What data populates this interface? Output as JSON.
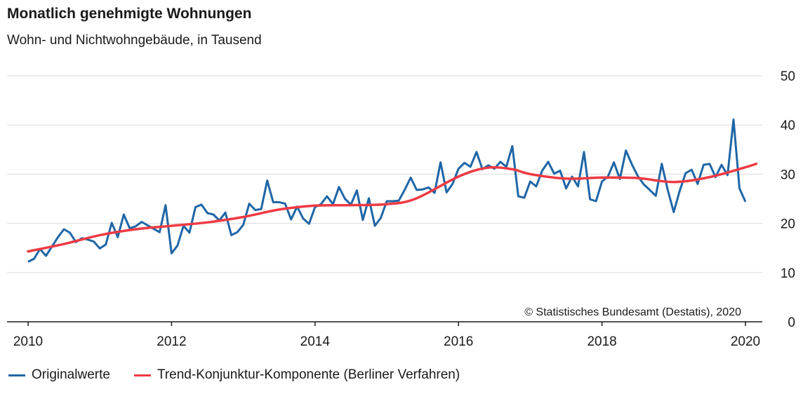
{
  "chart_data": {
    "type": "line",
    "title": "Monatlich genehmigte Wohnungen",
    "subtitle": "Wohn- und Nichtwohngebäude, in Tausend",
    "source": "© Statistisches Bundesamt (Destatis), 2020",
    "x_ticks": [
      "2010",
      "2012",
      "2014",
      "2016",
      "2018",
      "2020"
    ],
    "y_ticks": [
      "0",
      "10",
      "20",
      "30",
      "40",
      "50"
    ],
    "xlim": [
      2010,
      2020.25
    ],
    "ylim": [
      0,
      50
    ],
    "grid": true,
    "y_axis_side": "right",
    "legend_position": "bottom",
    "series": [
      {
        "name": "Originalwerte",
        "color": "#1f66a6",
        "start": "2010-01",
        "values": [
          12.2,
          12.8,
          14.8,
          13.4,
          15.3,
          17.2,
          18.8,
          18.1,
          16.2,
          17.0,
          16.7,
          16.3,
          14.9,
          15.7,
          20.1,
          17.2,
          21.8,
          19.0,
          19.4,
          20.3,
          19.6,
          18.9,
          18.2,
          23.7,
          13.9,
          15.5,
          19.5,
          18.1,
          23.3,
          23.8,
          22.1,
          21.8,
          20.6,
          22.2,
          17.6,
          18.2,
          19.7,
          24.0,
          22.7,
          22.9,
          28.7,
          24.3,
          24.3,
          24.0,
          20.8,
          23.4,
          21.0,
          19.9,
          23.3,
          23.9,
          25.5,
          23.9,
          27.4,
          25.0,
          23.8,
          26.7,
          20.7,
          25.1,
          19.5,
          21.1,
          24.5,
          24.5,
          24.6,
          26.8,
          29.3,
          26.8,
          26.9,
          27.3,
          26.2,
          32.4,
          26.3,
          28.0,
          31.1,
          32.3,
          31.5,
          34.5,
          31.0,
          31.8,
          31.1,
          32.5,
          31.5,
          35.7,
          25.5,
          25.2,
          28.5,
          27.5,
          30.7,
          32.5,
          30.1,
          30.7,
          27.1,
          29.5,
          27.5,
          34.5,
          24.9,
          24.5,
          28.5,
          29.5,
          32.4,
          29.0,
          34.8,
          32.0,
          29.6,
          27.9,
          26.8,
          25.6,
          32.1,
          26.8,
          22.3,
          26.6,
          30.2,
          30.9,
          28.0,
          31.9,
          32.1,
          29.4,
          31.9,
          29.8,
          41.1,
          27.1,
          24.4
        ]
      },
      {
        "name": "Trend-Konjunktur-Komponente (Berliner Verfahren)",
        "color": "#ee3a43",
        "points": [
          [
            2010.0,
            14.3
          ],
          [
            2010.5,
            15.8
          ],
          [
            2011.0,
            17.6
          ],
          [
            2011.5,
            18.8
          ],
          [
            2012.0,
            19.5
          ],
          [
            2012.5,
            20.2
          ],
          [
            2013.0,
            21.3
          ],
          [
            2013.5,
            22.8
          ],
          [
            2014.0,
            23.6
          ],
          [
            2014.5,
            23.7
          ],
          [
            2015.0,
            23.9
          ],
          [
            2015.4,
            25.0
          ],
          [
            2016.0,
            29.5
          ],
          [
            2016.4,
            31.3
          ],
          [
            2016.75,
            31.0
          ],
          [
            2017.0,
            30.0
          ],
          [
            2017.5,
            29.1
          ],
          [
            2018.0,
            29.3
          ],
          [
            2018.5,
            29.2
          ],
          [
            2019.0,
            28.4
          ],
          [
            2019.5,
            29.4
          ],
          [
            2020.0,
            31.4
          ],
          [
            2020.15,
            32.1
          ]
        ]
      }
    ]
  }
}
